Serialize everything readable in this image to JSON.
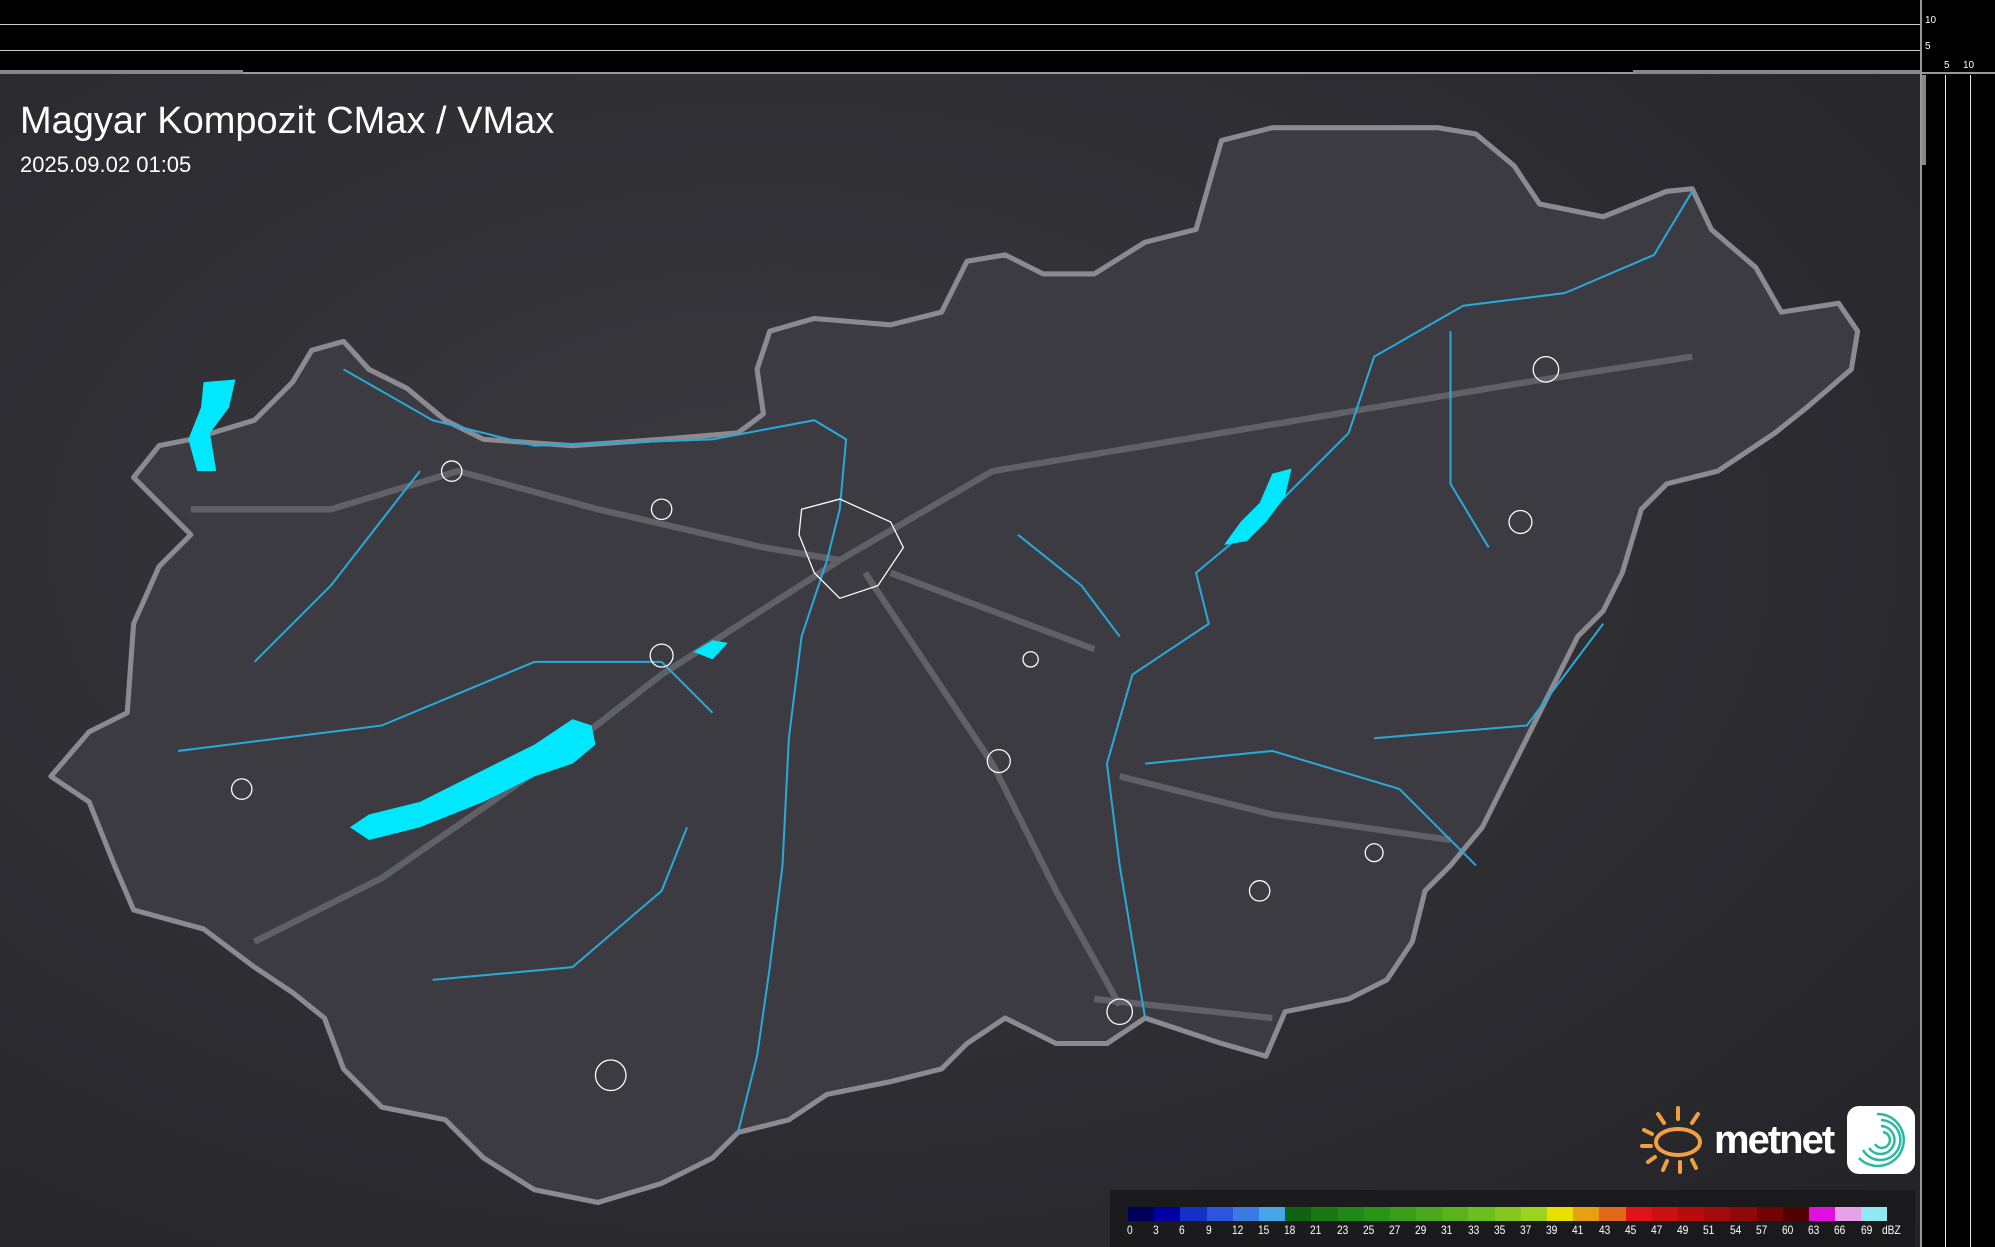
{
  "title": "Magyar Kompozit CMax / VMax",
  "timestamp": "2025.09.02 01:05",
  "side_profile": {
    "top_ticks": [
      "10",
      "5"
    ],
    "right_ticks": [
      "5",
      "10"
    ]
  },
  "legend": {
    "unit": "dBZ",
    "values": [
      "0",
      "3",
      "6",
      "9",
      "12",
      "15",
      "18",
      "21",
      "23",
      "25",
      "27",
      "29",
      "31",
      "33",
      "35",
      "37",
      "39",
      "41",
      "43",
      "45",
      "47",
      "49",
      "51",
      "54",
      "57",
      "60",
      "63",
      "66",
      "69"
    ],
    "colors": [
      "#00005c",
      "#0000a4",
      "#1430c8",
      "#2a55dc",
      "#3a7ae2",
      "#46a4e8",
      "#0f6410",
      "#197814",
      "#208818",
      "#2a9418",
      "#3a9e1a",
      "#4aa81c",
      "#5ab21c",
      "#6abe1e",
      "#84c81e",
      "#9ad41e",
      "#e8e000",
      "#e8a010",
      "#e06818",
      "#e01418",
      "#cc1010",
      "#b80c0c",
      "#a40a0a",
      "#900808",
      "#740404",
      "#500202",
      "#e010e0",
      "#e8a0e8",
      "#90e8f0"
    ]
  },
  "map": {
    "country_fill": "#3a3a40",
    "border_color": "#8a8a90",
    "river_color": "#2aa8d8",
    "lake_color": "#00e8ff",
    "city_outline": "#ffffff"
  },
  "logo": {
    "brand": "metnet",
    "sun_color": "#f0a040",
    "icon": "swirl-app-icon"
  }
}
